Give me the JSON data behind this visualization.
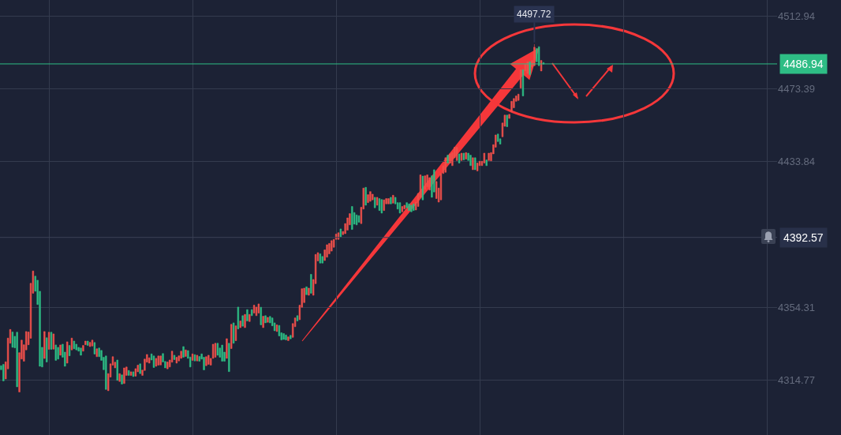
{
  "chart_data": {
    "type": "candlestick",
    "colors": [
      "#2ebd85",
      "#2ebd85",
      "#f0504b",
      "#f0504b",
      "#f0504b",
      "#2ebd85",
      "#2ebd85",
      "#2ebd85",
      "#f0504b",
      "#f0504b",
      "#f0504b",
      "#f0504b",
      "#f0504b",
      "#f0504b",
      "#f0504b",
      "#2ebd85",
      "#2ebd85",
      "#2ebd85",
      "#2ebd85",
      "#f0504b",
      "#2ebd85",
      "#f0504b",
      "#2ebd85",
      "#f0504b",
      "#2ebd85",
      "#2ebd85",
      "#f0504b",
      "#2ebd85",
      "#2ebd85",
      "#f0504b",
      "#2ebd85",
      "#f0504b",
      "#2ebd85",
      "#2ebd85",
      "#2ebd85",
      "#2ebd85",
      "#f0504b",
      "#f0504b",
      "#2ebd85",
      "#f0504b",
      "#f0504b",
      "#2ebd85",
      "#f0504b",
      "#2ebd85",
      "#2ebd85",
      "#2ebd85",
      "#2ebd85",
      "#f0504b",
      "#f0504b",
      "#f0504b",
      "#f0504b",
      "#2ebd85",
      "#f0504b",
      "#2ebd85",
      "#f0504b",
      "#f0504b",
      "#2ebd85",
      "#f0504b",
      "#2ebd85",
      "#f0504b",
      "#f0504b",
      "#2ebd85",
      "#f0504b",
      "#f0504b",
      "#f0504b",
      "#f0504b",
      "#2ebd85",
      "#2ebd85",
      "#f0504b",
      "#f0504b",
      "#f0504b",
      "#2ebd85",
      "#2ebd85",
      "#f0504b",
      "#f0504b",
      "#f0504b",
      "#2ebd85",
      "#f0504b",
      "#f0504b",
      "#f0504b",
      "#2ebd85",
      "#f0504b",
      "#2ebd85",
      "#2ebd85",
      "#f0504b",
      "#2ebd85",
      "#f0504b",
      "#2ebd85",
      "#2ebd85",
      "#2ebd85",
      "#f0504b",
      "#f0504b",
      "#f0504b",
      "#f0504b",
      "#f0504b",
      "#2ebd85",
      "#2ebd85",
      "#2ebd85",
      "#2ebd85",
      "#f0504b",
      "#2ebd85",
      "#f0504b",
      "#2ebd85",
      "#f0504b",
      "#2ebd85",
      "#f0504b",
      "#2ebd85",
      "#f0504b",
      "#2ebd85",
      "#f0504b",
      "#2ebd85",
      "#f0504b",
      "#f0504b",
      "#f0504b",
      "#2ebd85",
      "#f0504b",
      "#2ebd85",
      "#f0504b",
      "#2ebd85",
      "#2ebd85",
      "#2ebd85",
      "#f0504b",
      "#2ebd85",
      "#2ebd85",
      "#2ebd85",
      "#2ebd85",
      "#f0504b",
      "#2ebd85",
      "#f0504b",
      "#f0504b",
      "#2ebd85",
      "#f0504b",
      "#f0504b",
      "#f0504b",
      "#2ebd85",
      "#f0504b",
      "#2ebd85",
      "#f0504b",
      "#f0504b",
      "#f0504b",
      "#2ebd85",
      "#2ebd85",
      "#f0504b",
      "#f0504b",
      "#f0504b",
      "#f0504b",
      "#f0504b",
      "#f0504b",
      "#f0504b",
      "#2ebd85",
      "#f0504b",
      "#f0504b",
      "#f0504b",
      "#f0504b",
      "#2ebd85",
      "#2ebd85",
      "#2ebd85",
      "#2ebd85",
      "#f0504b",
      "#f0504b",
      "#2ebd85",
      "#f0504b",
      "#f0504b",
      "#f0504b",
      "#2ebd85",
      "#f0504b",
      "#2ebd85",
      "#2ebd85",
      "#f0504b",
      "#f0504b",
      "#f0504b",
      "#2ebd85",
      "#f0504b",
      "#2ebd85",
      "#2ebd85",
      "#2ebd85",
      "#f0504b",
      "#f0504b",
      "#2ebd85",
      "#2ebd85",
      "#2ebd85",
      "#2ebd85",
      "#f0504b",
      "#f0504b",
      "#f0504b",
      "#2ebd85",
      "#f0504b",
      "#f0504b",
      "#f0504b",
      "#2ebd85",
      "#2ebd85",
      "#f0504b",
      "#f0504b",
      "#f0504b",
      "#f0504b",
      "#f0504b",
      "#2ebd85",
      "#f0504b",
      "#f0504b",
      "#f0504b",
      "#f0504b",
      "#2ebd85",
      "#f0504b",
      "#2ebd85",
      "#f0504b",
      "#2ebd85",
      "#2ebd85",
      "#f0504b",
      "#2ebd85",
      "#f0504b",
      "#f0504b",
      "#f0504b",
      "#f0504b",
      "#2ebd85",
      "#f0504b",
      "#f0504b",
      "#f0504b",
      "#f0504b",
      "#2ebd85",
      "#2ebd85",
      "#f0504b",
      "#f0504b",
      "#2ebd85",
      "#f0504b",
      "#f0504b",
      "#f0504b",
      "#f0504b",
      "#f0504b",
      "#f0504b",
      "#2ebd85",
      "#f0504b",
      "#f0504b",
      "#2ebd85",
      "#f0504b",
      "#f0504b",
      "#2ebd85",
      "#2ebd85",
      "#f0504b",
      "#2ebd85",
      null,
      null,
      null,
      null,
      null,
      null,
      null,
      null,
      null,
      null,
      null,
      null,
      null,
      null,
      null,
      null,
      null,
      null,
      null,
      null,
      null,
      null,
      null,
      null,
      null,
      null,
      null,
      null,
      null,
      null,
      null,
      null,
      null,
      null,
      null,
      null,
      null,
      null,
      null,
      null,
      null,
      null,
      null,
      null,
      null,
      null,
      null,
      null,
      null,
      null,
      null,
      null,
      null,
      null,
      null,
      null,
      null,
      null,
      null,
      null,
      null,
      null,
      null,
      null,
      null,
      null,
      null,
      null,
      null,
      null,
      null,
      null,
      null,
      null,
      null,
      null,
      null,
      null,
      null,
      null,
      null,
      null,
      null,
      null,
      null,
      null,
      null,
      null,
      null,
      null,
      null,
      null,
      null,
      null,
      null,
      null,
      null,
      null,
      null,
      null,
      null,
      null
    ],
    "categories": [
      null,
      null,
      null,
      null,
      null,
      null,
      null,
      null,
      null,
      null,
      null,
      null,
      null,
      null,
      null,
      null,
      null,
      null,
      null,
      null,
      null,
      null,
      null,
      null,
      null,
      null,
      null,
      null,
      null,
      null,
      null,
      null,
      null,
      null,
      null,
      null,
      null,
      null,
      null,
      null,
      null,
      null,
      null,
      null,
      null,
      null,
      null,
      null,
      null,
      null,
      null,
      null,
      null,
      null,
      null,
      null,
      null,
      null,
      null,
      null,
      null,
      null,
      null,
      null,
      null,
      null,
      null,
      null,
      null,
      null,
      null,
      null,
      null,
      null,
      null,
      null,
      null,
      null,
      null,
      null,
      null,
      null,
      null,
      null,
      null,
      null,
      null,
      null,
      null,
      null,
      null,
      null,
      null,
      null,
      null,
      null,
      null,
      null,
      null,
      null,
      null,
      null,
      null,
      null,
      null,
      null,
      null,
      null,
      null,
      null,
      null,
      null,
      null,
      null,
      null,
      null,
      null,
      null,
      null,
      null,
      null,
      null,
      null,
      null,
      null,
      null,
      null,
      null,
      null,
      null,
      null,
      null,
      null,
      null,
      null,
      null,
      null,
      null,
      null,
      null,
      null,
      null,
      null,
      null,
      null,
      null,
      null,
      null,
      null,
      null,
      null,
      null,
      null,
      null,
      null,
      null,
      null,
      null,
      null,
      null,
      null,
      null,
      null,
      null,
      null,
      null,
      null,
      null,
      null,
      null,
      null,
      null,
      null,
      null,
      null,
      null,
      null,
      null,
      null,
      null,
      null,
      null,
      null,
      null,
      null,
      null,
      null,
      null,
      null,
      null,
      null,
      null,
      null,
      null,
      null,
      null,
      null,
      null,
      null,
      null,
      null,
      null,
      null,
      null,
      null,
      null,
      null,
      null,
      null,
      null,
      null,
      null,
      null,
      null,
      null,
      null,
      null,
      null,
      null,
      null,
      null,
      null,
      null,
      null,
      null,
      null,
      null,
      null,
      null,
      null,
      null,
      null,
      null,
      null,
      null,
      null,
      null,
      null,
      null,
      null,
      null,
      null,
      null,
      null,
      null,
      null,
      null,
      null,
      null,
      null,
      null,
      null,
      null,
      null,
      null,
      null,
      null,
      null,
      null,
      null,
      null,
      null,
      null,
      null,
      null,
      null,
      null,
      null,
      null,
      null,
      null,
      null,
      null,
      null,
      null,
      null,
      null,
      null,
      null,
      null,
      null,
      null,
      null,
      null,
      null,
      null,
      null,
      null,
      null,
      null,
      null,
      null,
      null,
      null,
      null,
      null,
      null,
      null,
      null,
      null,
      null,
      null,
      null,
      null,
      null,
      null,
      null,
      null,
      null,
      null,
      null,
      null,
      null,
      null,
      null,
      null,
      null,
      null,
      null,
      null,
      null,
      null,
      null,
      null,
      null,
      null,
      null,
      null,
      null,
      null,
      null,
      null,
      null,
      null,
      null,
      null,
      null,
      null,
      null,
      null,
      null
    ],
    "ohlc": [
      [
        4322.8,
        4322.8,
        4320.6,
        4320.6
      ],
      [
        4323.5,
        4323.5,
        4314.5,
        4314.5
      ],
      [
        4315.6,
        4324.9,
        4315.6,
        4324.9
      ],
      [
        4321.1,
        4337.8,
        4321.1,
        4337.8
      ],
      [
        4335.0,
        4342.5,
        4335.0,
        4342.5
      ],
      [
        4341.1,
        4341.1,
        4332.8,
        4332.8
      ],
      [
        4338.8,
        4338.8,
        4332.5,
        4332.5
      ],
      [
        4341.0,
        4341.0,
        4311.3,
        4311.3
      ],
      [
        4308.5,
        4329.9,
        4308.5,
        4329.9
      ],
      [
        4326.4,
        4336.7,
        4326.4,
        4336.7
      ],
      [
        4325.2,
        4334.2,
        4325.2,
        4334.2
      ],
      [
        4331.4,
        4341.4,
        4331.4,
        4341.4
      ],
      [
        4334.2,
        4341.1,
        4334.2,
        4341.1
      ],
      [
        4337.7,
        4367.6,
        4337.7,
        4367.6
      ],
      [
        4362.2,
        4374.3,
        4362.2,
        4374.3
      ],
      [
        4371.5,
        4371.5,
        4363.3,
        4363.3
      ],
      [
        4369.3,
        4369.3,
        4356.1,
        4356.1
      ],
      [
        4363.3,
        4363.3,
        4322.5,
        4322.5
      ],
      [
        4332.8,
        4332.8,
        4322.1,
        4322.1
      ],
      [
        4326.7,
        4341.4,
        4326.7,
        4341.4
      ],
      [
        4338.0,
        4338.0,
        4324.8,
        4324.8
      ],
      [
        4331.7,
        4341.0,
        4331.7,
        4341.0
      ],
      [
        4341.0,
        4341.0,
        4331.7,
        4331.7
      ],
      [
        4331.8,
        4340.1,
        4331.8,
        4340.1
      ],
      [
        4334.1,
        4334.1,
        4325.7,
        4325.7
      ],
      [
        4332.8,
        4332.8,
        4326.4,
        4326.4
      ],
      [
        4328.5,
        4334.1,
        4328.5,
        4334.1
      ],
      [
        4334.5,
        4334.5,
        4327.4,
        4327.4
      ],
      [
        4330.2,
        4330.2,
        4322.5,
        4322.5
      ],
      [
        4324.2,
        4335.8,
        4324.2,
        4335.8
      ],
      [
        4333.8,
        4333.8,
        4328.2,
        4328.2
      ],
      [
        4331.4,
        4337.8,
        4331.4,
        4337.8
      ],
      [
        4336.2,
        4336.2,
        4332.0,
        4332.0
      ],
      [
        4334.5,
        4334.5,
        4331.4,
        4331.4
      ],
      [
        4332.8,
        4332.8,
        4330.7,
        4330.7
      ],
      [
        4332.4,
        4332.4,
        4328.5,
        4328.5
      ],
      [
        4330.7,
        4333.8,
        4330.7,
        4333.8
      ],
      [
        4334.2,
        4336.2,
        4334.2,
        4336.2
      ],
      [
        4336.2,
        4336.2,
        4333.8,
        4333.8
      ],
      [
        4333.2,
        4335.5,
        4333.2,
        4335.5
      ],
      [
        4333.5,
        4336.7,
        4333.5,
        4336.7
      ],
      [
        4335.4,
        4335.4,
        4329.1,
        4329.1
      ],
      [
        4327.7,
        4332.0,
        4327.7,
        4332.0
      ],
      [
        4332.4,
        4332.4,
        4327.7,
        4327.7
      ],
      [
        4331.1,
        4331.1,
        4325.7,
        4325.7
      ],
      [
        4327.4,
        4327.4,
        4320.6,
        4320.6
      ],
      [
        4328.1,
        4328.1,
        4309.9,
        4309.9
      ],
      [
        4309.2,
        4318.5,
        4309.2,
        4318.5
      ],
      [
        4316.6,
        4323.8,
        4316.6,
        4323.8
      ],
      [
        4323.1,
        4327.7,
        4323.1,
        4327.7
      ],
      [
        4321.6,
        4324.7,
        4321.6,
        4324.7
      ],
      [
        4325.9,
        4325.9,
        4314.8,
        4314.8
      ],
      [
        4314.2,
        4318.5,
        4314.2,
        4318.5
      ],
      [
        4317.8,
        4317.8,
        4312.8,
        4312.8
      ],
      [
        4313.1,
        4321.6,
        4313.1,
        4321.6
      ],
      [
        4317.5,
        4322.1,
        4317.5,
        4322.1
      ],
      [
        4320.2,
        4320.2,
        4317.5,
        4317.5
      ],
      [
        4317.5,
        4319.5,
        4317.5,
        4319.5
      ],
      [
        4319.5,
        4319.5,
        4316.9,
        4316.9
      ],
      [
        4317.1,
        4321.2,
        4317.1,
        4321.2
      ],
      [
        4319.5,
        4323.1,
        4319.5,
        4323.1
      ],
      [
        4323.8,
        4323.8,
        4318.5,
        4318.5
      ],
      [
        4317.5,
        4320.4,
        4317.5,
        4320.4
      ],
      [
        4320.2,
        4326.4,
        4320.2,
        4326.4
      ],
      [
        4324.7,
        4328.9,
        4324.7,
        4328.9
      ],
      [
        4324.2,
        4327.1,
        4324.2,
        4327.1
      ],
      [
        4329.2,
        4329.2,
        4325.9,
        4325.9
      ],
      [
        4328.1,
        4328.1,
        4321.8,
        4321.8
      ],
      [
        4322.5,
        4326.8,
        4322.5,
        4326.8
      ],
      [
        4323.1,
        4328.1,
        4323.1,
        4328.1
      ],
      [
        4323.2,
        4328.1,
        4323.2,
        4328.1
      ],
      [
        4329.4,
        4329.4,
        4324.8,
        4324.8
      ],
      [
        4325.1,
        4325.1,
        4321.6,
        4321.6
      ],
      [
        4321.1,
        4324.8,
        4321.1,
        4324.8
      ],
      [
        4322.1,
        4325.9,
        4322.1,
        4325.9
      ],
      [
        4324.7,
        4330.7,
        4324.7,
        4330.7
      ],
      [
        4328.5,
        4328.5,
        4326.1,
        4326.1
      ],
      [
        4324.2,
        4327.4,
        4324.2,
        4327.4
      ],
      [
        4325.4,
        4328.2,
        4325.4,
        4328.2
      ],
      [
        4326.8,
        4330.7,
        4326.8,
        4330.7
      ],
      [
        4333.2,
        4333.2,
        4327.4,
        4327.4
      ],
      [
        4327.8,
        4331.4,
        4327.8,
        4331.4
      ],
      [
        4331.0,
        4331.0,
        4326.8,
        4326.8
      ],
      [
        4327.5,
        4327.5,
        4322.1,
        4322.1
      ],
      [
        4325.7,
        4329.2,
        4325.7,
        4329.2
      ],
      [
        4328.8,
        4328.8,
        4325.4,
        4325.4
      ],
      [
        4325.4,
        4328.5,
        4325.4,
        4328.5
      ],
      [
        4327.8,
        4327.8,
        4325.2,
        4325.2
      ],
      [
        4329.2,
        4329.2,
        4326.4,
        4326.4
      ],
      [
        4327.4,
        4327.4,
        4320.5,
        4320.5
      ],
      [
        4322.8,
        4327.7,
        4322.8,
        4327.7
      ],
      [
        4323.5,
        4328.5,
        4323.5,
        4328.5
      ],
      [
        4323.1,
        4326.8,
        4323.1,
        4326.8
      ],
      [
        4326.8,
        4334.5,
        4326.8,
        4334.5
      ],
      [
        4327.4,
        4335.0,
        4327.4,
        4335.0
      ],
      [
        4335.0,
        4335.0,
        4328.5,
        4328.5
      ],
      [
        4332.4,
        4332.4,
        4327.4,
        4327.4
      ],
      [
        4334.0,
        4334.0,
        4325.2,
        4325.2
      ],
      [
        4330.2,
        4330.2,
        4325.2,
        4325.2
      ],
      [
        4326.8,
        4337.5,
        4326.8,
        4337.5
      ],
      [
        4335.0,
        4335.0,
        4319.6,
        4319.6
      ],
      [
        4332.1,
        4345.3,
        4332.1,
        4345.3
      ],
      [
        4346.1,
        4346.1,
        4335.0,
        4335.0
      ],
      [
        4336.4,
        4344.5,
        4336.4,
        4344.5
      ],
      [
        4354.7,
        4354.7,
        4342.8,
        4342.8
      ],
      [
        4343.5,
        4347.1,
        4343.5,
        4347.1
      ],
      [
        4350.0,
        4350.0,
        4344.3,
        4344.3
      ],
      [
        4343.5,
        4350.7,
        4343.5,
        4350.7
      ],
      [
        4353.3,
        4353.3,
        4347.1,
        4347.1
      ],
      [
        4346.8,
        4350.7,
        4346.8,
        4350.7
      ],
      [
        4353.3,
        4353.3,
        4350.0,
        4350.0
      ],
      [
        4351.4,
        4355.7,
        4351.4,
        4355.7
      ],
      [
        4350.0,
        4354.7,
        4350.0,
        4354.7
      ],
      [
        4351.4,
        4356.4,
        4351.4,
        4356.4
      ],
      [
        4354.6,
        4354.6,
        4345.0,
        4345.0
      ],
      [
        4343.5,
        4349.7,
        4343.5,
        4349.7
      ],
      [
        4350.0,
        4350.0,
        4346.1,
        4346.1
      ],
      [
        4346.4,
        4349.1,
        4346.4,
        4349.1
      ],
      [
        4349.6,
        4349.6,
        4346.1,
        4346.1
      ],
      [
        4348.8,
        4348.8,
        4344.5,
        4344.5
      ],
      [
        4346.1,
        4346.1,
        4341.8,
        4341.8
      ],
      [
        4341.4,
        4345.0,
        4341.4,
        4345.0
      ],
      [
        4344.7,
        4344.7,
        4339.0,
        4339.0
      ],
      [
        4340.7,
        4340.7,
        4336.8,
        4336.8
      ],
      [
        4340.3,
        4340.3,
        4337.1,
        4337.1
      ],
      [
        4339.5,
        4339.5,
        4336.8,
        4336.8
      ],
      [
        4336.4,
        4338.5,
        4336.4,
        4338.5
      ],
      [
        4339.3,
        4339.3,
        4337.4,
        4337.4
      ],
      [
        4338.2,
        4345.7,
        4338.2,
        4345.7
      ],
      [
        4344.0,
        4348.8,
        4344.0,
        4348.8
      ],
      [
        4350.0,
        4350.0,
        4347.1,
        4347.1
      ],
      [
        4347.8,
        4355.7,
        4347.8,
        4355.7
      ],
      [
        4354.6,
        4364.7,
        4354.6,
        4364.7
      ],
      [
        4357.1,
        4365.0,
        4357.1,
        4365.0
      ],
      [
        4365.7,
        4365.7,
        4361.4,
        4361.4
      ],
      [
        4361.1,
        4365.0,
        4361.1,
        4365.0
      ],
      [
        4372.5,
        4372.5,
        4362.2,
        4362.2
      ],
      [
        4361.1,
        4369.7,
        4361.1,
        4369.7
      ],
      [
        4367.4,
        4383.3,
        4367.4,
        4383.3
      ],
      [
        4379.8,
        4384.3,
        4379.8,
        4384.3
      ],
      [
        4383.6,
        4383.6,
        4378.6,
        4378.6
      ],
      [
        4382.2,
        4382.2,
        4378.6,
        4378.6
      ],
      [
        4380.0,
        4385.8,
        4380.0,
        4385.8
      ],
      [
        4381.8,
        4388.6,
        4381.8,
        4388.6
      ],
      [
        4383.6,
        4389.3,
        4383.6,
        4389.3
      ],
      [
        4385.1,
        4390.8,
        4385.1,
        4390.8
      ],
      [
        4387.2,
        4391.5,
        4387.2,
        4391.5
      ],
      [
        4391.5,
        4394.4,
        4391.5,
        4394.4
      ],
      [
        4391.5,
        4395.1,
        4391.5,
        4395.1
      ],
      [
        4397.2,
        4397.2,
        4392.9,
        4392.9
      ],
      [
        4394.1,
        4395.8,
        4394.1,
        4395.8
      ],
      [
        4394.6,
        4400.1,
        4394.6,
        4400.1
      ],
      [
        4396.5,
        4403.2,
        4396.5,
        4403.2
      ],
      [
        4399.4,
        4405.5,
        4399.4,
        4405.5
      ],
      [
        4409.4,
        4409.4,
        4396.9,
        4396.9
      ],
      [
        4406.1,
        4406.1,
        4399.8,
        4399.8
      ],
      [
        4404.8,
        4404.8,
        4399.4,
        4399.4
      ],
      [
        4404.4,
        4404.4,
        4400.8,
        4400.8
      ],
      [
        4400.1,
        4409.0,
        4400.1,
        4409.0
      ],
      [
        4408.0,
        4419.4,
        4408.0,
        4419.4
      ],
      [
        4419.8,
        4419.8,
        4410.1,
        4410.1
      ],
      [
        4411.5,
        4415.8,
        4411.5,
        4415.8
      ],
      [
        4412.2,
        4417.5,
        4412.2,
        4417.5
      ],
      [
        4413.0,
        4416.1,
        4413.0,
        4416.1
      ],
      [
        4414.4,
        4414.4,
        4408.7,
        4408.7
      ],
      [
        4410.1,
        4414.4,
        4410.1,
        4414.4
      ],
      [
        4413.7,
        4413.7,
        4407.2,
        4407.2
      ],
      [
        4413.2,
        4413.2,
        4405.8,
        4405.8
      ],
      [
        4407.2,
        4413.0,
        4407.2,
        4413.0
      ],
      [
        4410.8,
        4413.7,
        4410.8,
        4413.7
      ],
      [
        4410.8,
        4413.7,
        4410.8,
        4413.7
      ],
      [
        4414.4,
        4414.4,
        4410.8,
        4410.8
      ],
      [
        4411.2,
        4415.5,
        4411.2,
        4415.5
      ],
      [
        4414.4,
        4414.4,
        4410.8,
        4410.8
      ],
      [
        4411.5,
        4411.5,
        4408.0,
        4408.0
      ],
      [
        4411.5,
        4411.5,
        4405.8,
        4405.8
      ],
      [
        4406.5,
        4409.4,
        4406.5,
        4409.4
      ],
      [
        4408.0,
        4410.1,
        4408.0,
        4410.1
      ],
      [
        4411.5,
        4411.5,
        4408.7,
        4408.7
      ],
      [
        4410.8,
        4410.8,
        4407.2,
        4407.2
      ],
      [
        4410.1,
        4410.1,
        4406.5,
        4406.5
      ],
      [
        4410.8,
        4410.8,
        4407.2,
        4407.2
      ],
      [
        4407.5,
        4411.8,
        4407.5,
        4411.8
      ],
      [
        4409.4,
        4416.5,
        4409.4,
        4416.5
      ],
      [
        4414.4,
        4426.6,
        4414.4,
        4426.6
      ],
      [
        4425.9,
        4425.9,
        4413.0,
        4413.0
      ],
      [
        4418.7,
        4426.1,
        4418.7,
        4426.1
      ],
      [
        4420.1,
        4426.6,
        4420.1,
        4426.6
      ],
      [
        4418.3,
        4425.1,
        4418.3,
        4425.1
      ],
      [
        4426.1,
        4426.1,
        4414.4,
        4414.4
      ],
      [
        4429.4,
        4429.4,
        4417.3,
        4417.3
      ],
      [
        4413.7,
        4423.0,
        4413.7,
        4423.0
      ],
      [
        4411.8,
        4419.4,
        4411.8,
        4419.4
      ],
      [
        4413.0,
        4427.3,
        4413.0,
        4427.3
      ],
      [
        4427.3,
        4431.6,
        4427.3,
        4431.6
      ],
      [
        4428.0,
        4435.9,
        4428.0,
        4435.9
      ],
      [
        4437.3,
        4437.3,
        4433.0,
        4433.0
      ],
      [
        4433.0,
        4438.0,
        4433.0,
        4438.0
      ],
      [
        4431.6,
        4438.7,
        4431.6,
        4438.7
      ],
      [
        4435.9,
        4441.6,
        4435.9,
        4441.6
      ],
      [
        4434.4,
        4441.6,
        4434.4,
        4441.6
      ],
      [
        4438.0,
        4438.0,
        4433.0,
        4433.0
      ],
      [
        4434.4,
        4438.4,
        4434.4,
        4438.4
      ],
      [
        4438.4,
        4438.4,
        4434.7,
        4434.7
      ],
      [
        4435.2,
        4438.7,
        4435.2,
        4438.7
      ],
      [
        4438.4,
        4438.4,
        4434.4,
        4434.4
      ],
      [
        4437.3,
        4437.3,
        4431.6,
        4431.6
      ],
      [
        4429.4,
        4435.9,
        4429.4,
        4435.9
      ],
      [
        4435.9,
        4435.9,
        4429.4,
        4429.4
      ],
      [
        4428.7,
        4433.0,
        4428.7,
        4433.0
      ],
      [
        4431.6,
        4434.0,
        4431.6,
        4434.0
      ],
      [
        4431.6,
        4434.0,
        4431.6,
        4434.0
      ],
      [
        4433.0,
        4438.4,
        4433.0,
        4438.4
      ],
      [
        4434.7,
        4434.7,
        4431.6,
        4431.6
      ],
      [
        4434.4,
        4438.4,
        4434.4,
        4438.4
      ],
      [
        4434.2,
        4438.7,
        4434.2,
        4438.7
      ],
      [
        4438.0,
        4443.0,
        4438.0,
        4443.0
      ],
      [
        4441.6,
        4448.3,
        4441.6,
        4448.3
      ],
      [
        4448.8,
        4448.8,
        4444.7,
        4444.7
      ],
      [
        4446.2,
        4446.2,
        4443.3,
        4443.3
      ],
      [
        4447.3,
        4454.8,
        4447.3,
        4454.8
      ],
      [
        4453.0,
        4459.1,
        4453.0,
        4459.1
      ],
      [
        4459.1,
        4459.1,
        4452.8,
        4452.8
      ],
      [
        4457.3,
        4459.5,
        4457.3,
        4459.5
      ],
      [
        4460.9,
        4466.6,
        4460.9,
        4466.6
      ],
      [
        4463.1,
        4468.1,
        4463.1,
        4468.1
      ],
      [
        4466.6,
        4469.5,
        4466.6,
        4469.5
      ],
      [
        4467.1,
        4470.5,
        4467.1,
        4470.5
      ],
      [
        4473.8,
        4483.8,
        4473.8,
        4483.8
      ],
      [
        4483.8,
        4483.8,
        4469.5,
        4469.5
      ],
      [
        4483.1,
        4486.7,
        4483.1,
        4486.7
      ],
      [
        4481.7,
        4488.1,
        4481.7,
        4488.1
      ],
      [
        4488.1,
        4488.1,
        4481.0,
        4481.0
      ],
      [
        4485.3,
        4488.8,
        4485.3,
        4488.8
      ],
      [
        4486.0,
        4497.72,
        4486.0,
        4496.0
      ],
      [
        4495.3,
        4495.3,
        4488.1,
        4488.1
      ],
      [
        4496.3,
        4496.3,
        4486.0,
        4486.0
      ],
      [
        4483.1,
        4488.8,
        4483.1,
        4488.8
      ],
      [
        4487.6,
        4488.0,
        4486.5,
        4486.94
      ],
      null,
      null,
      null,
      null,
      null,
      null,
      null,
      null,
      null,
      null,
      null,
      null,
      null,
      null,
      null,
      null,
      null,
      null,
      null,
      null,
      null,
      null,
      null,
      null,
      null,
      null,
      null,
      null,
      null,
      null,
      null,
      null,
      null,
      null,
      null,
      null,
      null,
      null,
      null,
      null,
      null,
      null,
      null,
      null,
      null,
      null,
      null,
      null,
      null,
      null,
      null,
      null,
      null,
      null,
      null,
      null,
      null,
      null,
      null,
      null,
      null,
      null,
      null,
      null,
      null,
      null,
      null,
      null,
      null,
      null,
      null,
      null,
      null,
      null,
      null,
      null,
      null,
      null,
      null,
      null,
      null,
      null,
      null,
      null,
      null,
      null,
      null,
      null,
      null,
      null,
      null,
      null,
      null,
      null,
      null,
      null,
      null,
      null,
      null,
      null,
      null,
      null
    ],
    "ylim": [
      4285.1,
      4521.7
    ],
    "yticks": [
      4314.77,
      4354.31,
      4433.84,
      4473.39,
      4512.94
    ],
    "ref_lines": [
      {
        "axis": "y",
        "value": 4486.94,
        "label": "4486.94",
        "color": "#2ebd85"
      },
      {
        "axis": "y",
        "value": 4392.57,
        "label": "4392.57",
        "color": "#3b4256"
      }
    ],
    "annotations": [
      "4497.72"
    ],
    "grid": true,
    "tick_labels": "y"
  }
}
